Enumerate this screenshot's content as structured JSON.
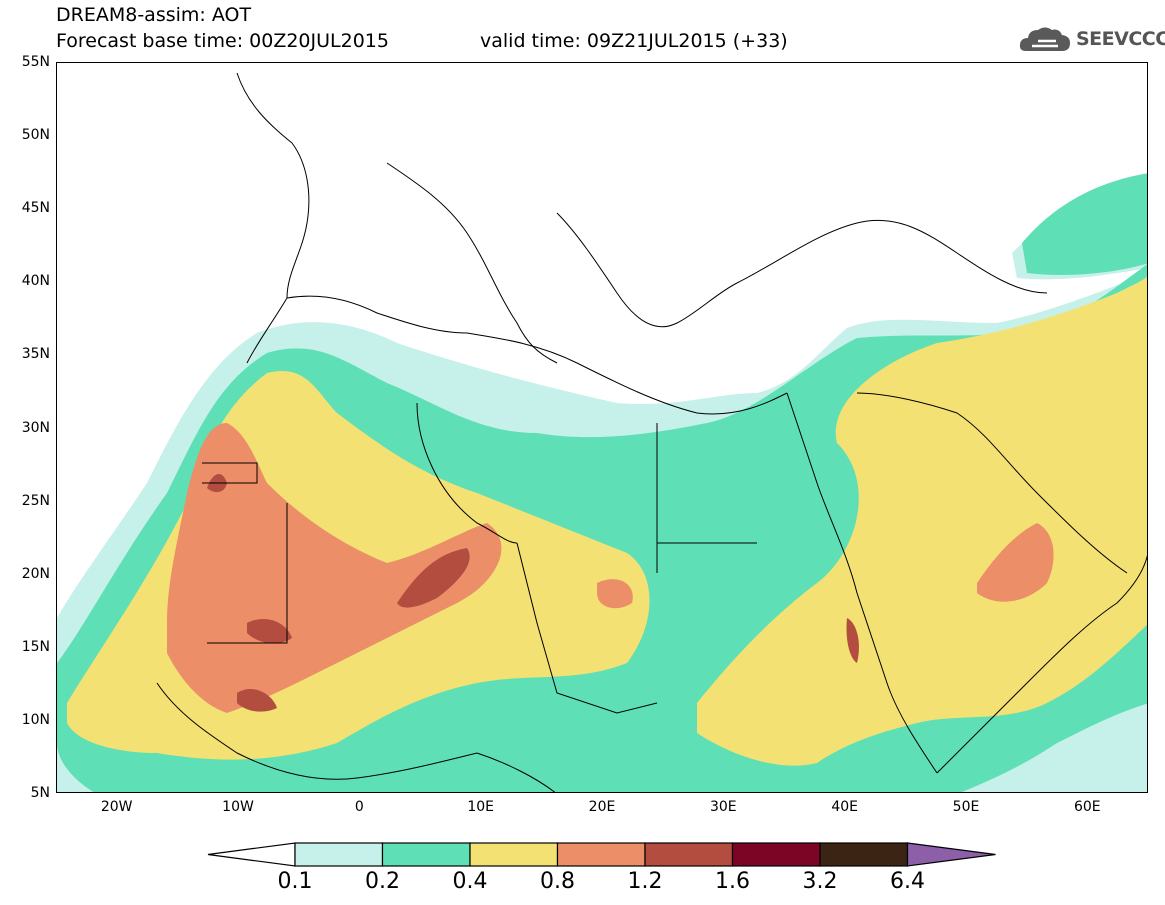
{
  "header": {
    "title": "DREAM8-assim: AOT",
    "base_time": "Forecast base time: 00Z20JUL2015",
    "valid_time": "valid time: 09Z21JUL2015 (+33)"
  },
  "logo": {
    "text": "SEEVCCC",
    "icon": "cloud-icon",
    "color": "#555555"
  },
  "map": {
    "lat_labels": [
      "55N",
      "50N",
      "45N",
      "40N",
      "35N",
      "30N",
      "25N",
      "20N",
      "15N",
      "10N",
      "5N"
    ],
    "lon_labels": [
      "20W",
      "10W",
      "0",
      "10E",
      "20E",
      "30E",
      "40E",
      "50E",
      "60E"
    ],
    "lat_range": [
      5,
      55
    ],
    "lon_range": [
      -25,
      65
    ]
  },
  "legend": {
    "thresholds": [
      "0.1",
      "0.2",
      "0.4",
      "0.8",
      "1.2",
      "1.6",
      "3.2",
      "6.4"
    ],
    "colors": [
      "#ffffff",
      "#c6f0ea",
      "#5fdfb5",
      "#f4e174",
      "#ec8f68",
      "#b24d40",
      "#7c0425",
      "#3b2413",
      "#8c5fa8"
    ]
  }
}
